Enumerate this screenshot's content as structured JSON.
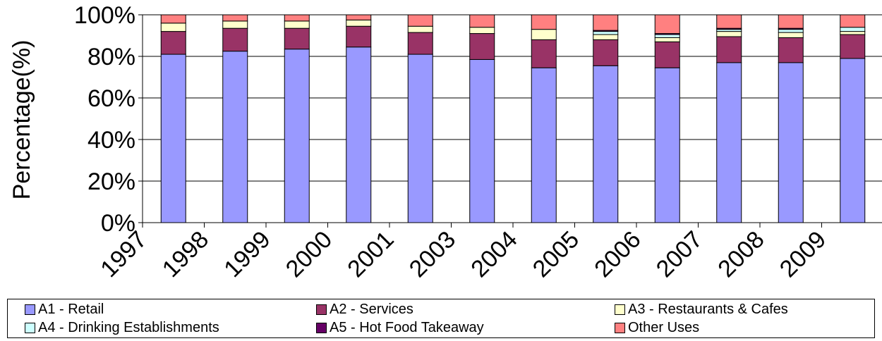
{
  "chart_data": {
    "type": "bar",
    "stacked": true,
    "percent_stacked": true,
    "categories": [
      "1997",
      "1998",
      "1999",
      "2000",
      "2001",
      "2003",
      "2004",
      "2005",
      "2006",
      "2007",
      "2008",
      "2009"
    ],
    "series": [
      {
        "name": "A1 - Retail",
        "color": "#9999FF",
        "values": [
          81,
          82.5,
          83.5,
          84.5,
          81,
          78.5,
          74.5,
          75.5,
          74.5,
          77,
          77,
          79
        ]
      },
      {
        "name": "A2 - Services",
        "color": "#993366",
        "values": [
          11,
          11,
          10,
          10,
          10.5,
          12.5,
          13.5,
          12.5,
          12.5,
          12.5,
          12,
          11.5
        ]
      },
      {
        "name": "A3 - Restaurants & Cafes",
        "color": "#FFFFCC",
        "values": [
          4,
          3.5,
          3.5,
          3,
          3,
          3,
          5,
          2.5,
          2,
          2.5,
          2.5,
          1.5
        ]
      },
      {
        "name": "A4 - Drinking Establishments",
        "color": "#CCFFFF",
        "values": [
          0,
          0,
          0,
          0,
          0,
          0,
          0,
          1.5,
          1.5,
          1,
          1.5,
          2
        ]
      },
      {
        "name": "A5 - Hot Food Takeaway",
        "color": "#660066",
        "values": [
          0,
          0,
          0,
          0,
          0,
          0,
          0,
          0.5,
          0.5,
          0.5,
          0.5,
          0
        ]
      },
      {
        "name": "Other Uses",
        "color": "#FF8080",
        "values": [
          4,
          3,
          3,
          2.5,
          5.5,
          6,
          7,
          7.5,
          9,
          6.5,
          6.5,
          6
        ]
      }
    ],
    "ylabel": "Percentage(%)",
    "xlabel": "",
    "title": "",
    "ylim": [
      0,
      100
    ],
    "yticks": [
      "0%",
      "20%",
      "40%",
      "60%",
      "80%",
      "100%"
    ],
    "grid": true,
    "legend_position": "bottom"
  }
}
